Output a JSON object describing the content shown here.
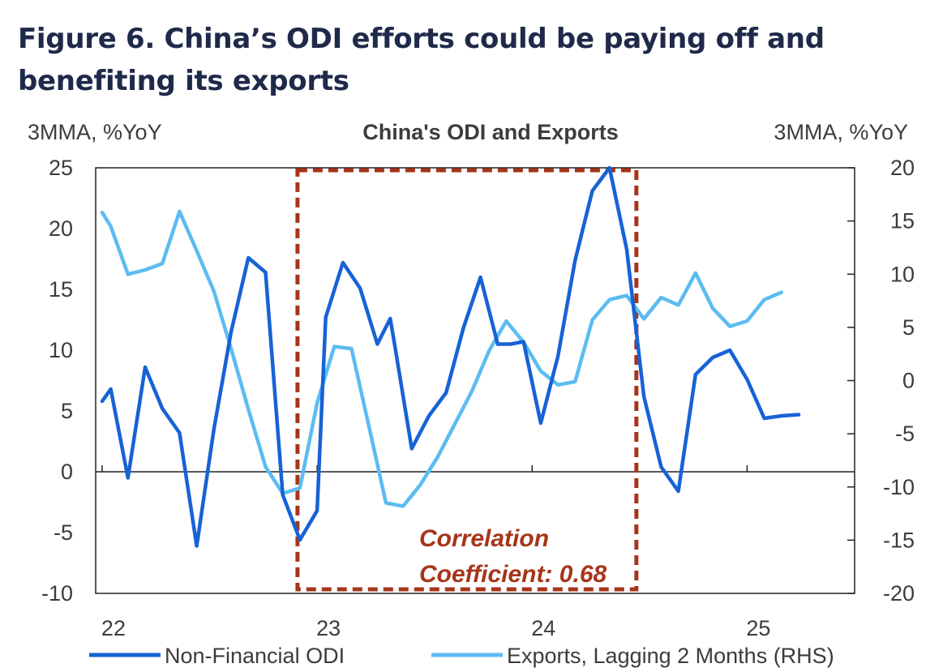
{
  "figure_title": "Figure 6. China’s ODI efforts could be paying off and benefiting its exports",
  "colors": {
    "odi": "#1762d6",
    "exports": "#5cbcf2",
    "highlight": "#a63519",
    "axis": "#222222"
  },
  "chart_data": {
    "type": "line",
    "title": "China's ODI and Exports",
    "ylabel_left": "3MMA, %YoY",
    "ylabel_right": "3MMA, %YoY",
    "ylim_left": [
      -10,
      25
    ],
    "ylim_right": [
      -20,
      20
    ],
    "yticks_left": [
      25,
      20,
      15,
      10,
      5,
      0,
      -5,
      -10
    ],
    "yticks_right": [
      20,
      15,
      10,
      5,
      0,
      -5,
      -10,
      -15,
      -20
    ],
    "xticks": [
      "22",
      "23",
      "24",
      "25"
    ],
    "grid": false,
    "legend_position": "bottom",
    "series": [
      {
        "name": "Non-Financial ODI",
        "axis": "left",
        "color": "#1762d6",
        "x": [
          22.0,
          22.04,
          22.12,
          22.2,
          22.28,
          22.36,
          22.44,
          22.52,
          22.6,
          22.68,
          22.76,
          22.84,
          22.92,
          23.0,
          23.04,
          23.12,
          23.2,
          23.28,
          23.34,
          23.36,
          23.44,
          23.52,
          23.6,
          23.68,
          23.76,
          23.84,
          23.9,
          23.96,
          24.04,
          24.12,
          24.2,
          24.28,
          24.36,
          24.44,
          24.52,
          24.6,
          24.68,
          24.76,
          24.84,
          24.92,
          25.0,
          25.08,
          25.16,
          25.24
        ],
        "y": [
          5.8,
          6.8,
          -0.5,
          8.6,
          5.2,
          3.2,
          -6.1,
          3.5,
          11.5,
          17.6,
          16.4,
          -1.9,
          -5.6,
          -3.2,
          12.7,
          17.2,
          15.1,
          10.5,
          12.6,
          10.5,
          1.9,
          4.6,
          6.5,
          11.8,
          16.0,
          10.5,
          10.5,
          10.7,
          4.0,
          9.5,
          17.4,
          23.1,
          25.0,
          18.3,
          6.2,
          0.4,
          -1.6,
          8.0,
          9.4,
          10.0,
          7.6,
          4.4,
          4.6,
          4.7
        ]
      },
      {
        "name": "Exports, Lagging 2 Months (RHS)",
        "axis": "right",
        "color": "#5cbcf2",
        "x": [
          22.0,
          22.04,
          22.12,
          22.2,
          22.28,
          22.36,
          22.44,
          22.52,
          22.6,
          22.68,
          22.76,
          22.84,
          22.92,
          23.0,
          23.08,
          23.16,
          23.24,
          23.32,
          23.4,
          23.48,
          23.56,
          23.64,
          23.72,
          23.8,
          23.88,
          23.96,
          24.04,
          24.12,
          24.2,
          24.28,
          24.36,
          24.44,
          24.52,
          24.6,
          24.68,
          24.76,
          24.84,
          24.92,
          25.0,
          25.08,
          25.16
        ],
        "y": [
          15.8,
          14.5,
          10.0,
          10.4,
          11.0,
          15.9,
          12.2,
          8.4,
          3.0,
          -2.7,
          -8.1,
          -10.6,
          -10.1,
          -2.1,
          3.2,
          3.0,
          -4.2,
          -11.5,
          -11.8,
          -9.8,
          -7.2,
          -4.1,
          -1.0,
          2.8,
          5.6,
          3.6,
          0.9,
          -0.4,
          -0.1,
          5.7,
          7.6,
          8.0,
          5.8,
          7.8,
          7.1,
          10.1,
          6.8,
          5.1,
          5.6,
          7.6,
          8.3
        ]
      }
    ],
    "annotations": [
      {
        "text": "Correlation Coefficient: 0.68",
        "line1": "Correlation",
        "line2": "Coefficient: 0.68",
        "color": "#a63519"
      }
    ],
    "highlight_region": {
      "x_from": 22.92,
      "x_to": 24.5,
      "style": "dashed box"
    }
  }
}
